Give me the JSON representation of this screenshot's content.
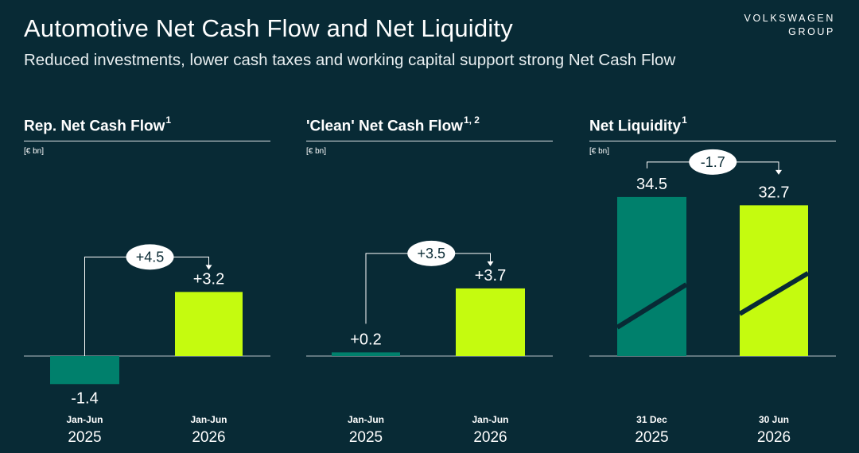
{
  "header": {
    "title": "Automotive Net Cash Flow and Net Liquidity",
    "subtitle": "Reduced investments, lower cash taxes and working capital support strong Net Cash Flow",
    "brand_line1": "VOLKSWAGEN",
    "brand_line2": "GROUP"
  },
  "colors": {
    "background": "#082a35",
    "prior_bar": "#00806c",
    "current_bar": "#c5fb0f",
    "text": "#ffffff"
  },
  "chart_data": [
    {
      "type": "bar",
      "title": "Rep. Net Cash Flow",
      "title_sup": "1",
      "unit": "[€ bn]",
      "categories": [
        {
          "period": "Jan-Jun",
          "year": "2025"
        },
        {
          "period": "Jan-Jun",
          "year": "2026"
        }
      ],
      "values": [
        -1.4,
        3.2
      ],
      "value_labels": [
        "-1.4",
        "+3.2"
      ],
      "delta": "+4.5"
    },
    {
      "type": "bar",
      "title": "'Clean' Net Cash Flow",
      "title_sup": "1, 2",
      "unit": "[€ bn]",
      "categories": [
        {
          "period": "Jan-Jun",
          "year": "2025"
        },
        {
          "period": "Jan-Jun",
          "year": "2026"
        }
      ],
      "values": [
        0.2,
        3.7
      ],
      "value_labels": [
        "+0.2",
        "+3.7"
      ],
      "delta": "+3.5"
    },
    {
      "type": "bar",
      "title": "Net Liquidity",
      "title_sup": "1",
      "unit": "[€ bn]",
      "axis_break": true,
      "categories": [
        {
          "period": "31 Dec",
          "year": "2025"
        },
        {
          "period": "30 Jun",
          "year": "2026"
        }
      ],
      "values": [
        34.5,
        32.7
      ],
      "value_labels": [
        "34.5",
        "32.7"
      ],
      "delta": "-1.7"
    }
  ]
}
